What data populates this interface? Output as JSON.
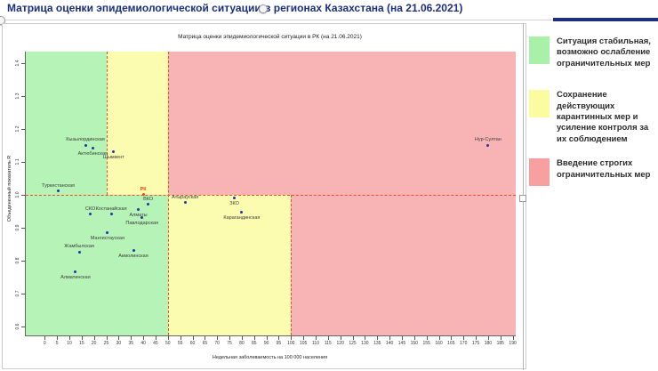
{
  "slide": {
    "title": "Матрица оценки эпидемиологической ситуации в регионах Казахстана (на 21.06.2021)"
  },
  "chart_data": {
    "type": "scatter",
    "title": "Матрица оценки эпидемиологической ситуации в РК (на 21.06.2021)",
    "xlabel": "Недельная заболеваемость на 100 000 населения",
    "ylabel": "Объединенный показатель R",
    "xlim": [
      0,
      190
    ],
    "ylim": [
      0.6,
      1.4
    ],
    "x_tick_step": 5,
    "y_tick_step": 0.1,
    "grid": false,
    "thresholds": {
      "R_line": 1.0,
      "incidence_when_R_above_1": [
        25,
        50
      ],
      "incidence_when_R_below_1": [
        50,
        100
      ]
    },
    "zones": [
      {
        "band": "upper",
        "x_from": null,
        "x_to": 25,
        "color": "green"
      },
      {
        "band": "upper",
        "x_from": 25,
        "x_to": 50,
        "color": "yellow"
      },
      {
        "band": "upper",
        "x_from": 50,
        "x_to": null,
        "color": "pink"
      },
      {
        "band": "lower",
        "x_from": null,
        "x_to": 50,
        "color": "green"
      },
      {
        "band": "lower",
        "x_from": 50,
        "x_to": 100,
        "color": "yellow"
      },
      {
        "band": "lower",
        "x_from": 100,
        "x_to": null,
        "color": "pink"
      }
    ],
    "dashed_lines": [
      {
        "orient": "h",
        "y": 1.0,
        "x_left": null,
        "x_right": null
      },
      {
        "orient": "v",
        "x": 25,
        "y_top": null,
        "y_bottom": 1.0
      },
      {
        "orient": "v",
        "x": 50,
        "y_top": null,
        "y_bottom": null
      },
      {
        "orient": "v",
        "x": 100,
        "y_top": 1.0,
        "y_bottom": null
      }
    ],
    "points": [
      {
        "name": "Кызылординская",
        "x": 16.5,
        "y": 1.15,
        "label_pos": "above",
        "highlight": false
      },
      {
        "name": "Актюбинская",
        "x": 19.5,
        "y": 1.14,
        "label_pos": "below",
        "highlight": false
      },
      {
        "name": "Шымкент",
        "x": 28,
        "y": 1.13,
        "label_pos": "below",
        "highlight": false
      },
      {
        "name": "Нур-Султан",
        "x": 180,
        "y": 1.15,
        "label_pos": "above",
        "highlight": false
      },
      {
        "name": "Туркестанская",
        "x": 5.5,
        "y": 1.01,
        "label_pos": "above",
        "highlight": false
      },
      {
        "name": "РК",
        "x": 40,
        "y": 1.0,
        "label_pos": "above",
        "highlight": true
      },
      {
        "name": "ВКО",
        "x": 42,
        "y": 0.97,
        "label_pos": "above",
        "highlight": false
      },
      {
        "name": "Алматы",
        "x": 38,
        "y": 0.955,
        "label_pos": "below",
        "highlight": false
      },
      {
        "name": "Павлодарская",
        "x": 39.5,
        "y": 0.93,
        "label_pos": "below",
        "highlight": false
      },
      {
        "name": "СКО",
        "x": 18.5,
        "y": 0.94,
        "label_pos": "above",
        "highlight": false
      },
      {
        "name": "Костанайская",
        "x": 27,
        "y": 0.94,
        "label_pos": "above",
        "highlight": false
      },
      {
        "name": "Мангистауская",
        "x": 25.5,
        "y": 0.885,
        "label_pos": "below",
        "highlight": false
      },
      {
        "name": "Жамбылская",
        "x": 14,
        "y": 0.825,
        "label_pos": "above",
        "highlight": false
      },
      {
        "name": "Акмолинская",
        "x": 36,
        "y": 0.83,
        "label_pos": "below",
        "highlight": false
      },
      {
        "name": "Алматинская",
        "x": 12.5,
        "y": 0.765,
        "label_pos": "below",
        "highlight": false
      },
      {
        "name": "Атырауская",
        "x": 57,
        "y": 0.975,
        "label_pos": "above",
        "highlight": false
      },
      {
        "name": "ЗКО",
        "x": 77,
        "y": 0.99,
        "label_pos": "below",
        "highlight": false
      },
      {
        "name": "Карагандинская",
        "x": 80,
        "y": 0.945,
        "label_pos": "below",
        "highlight": false
      }
    ]
  },
  "legend": {
    "items": [
      {
        "color": "#a9f1a9",
        "text": "Ситуация стабильная, возможно ослабление ограничительных мер"
      },
      {
        "color": "#fbfba2",
        "text": "Сохранение действующих карантинных мер и усиление контроля за их соблюдением"
      },
      {
        "color": "#f8a0a0",
        "text": "Введение строгих ограничительных мер"
      }
    ]
  },
  "colors": {
    "zone_green": "#b6f3b6",
    "zone_yellow": "#fcfcb0",
    "zone_pink": "#f8b4b4",
    "dashed_line": "#ee4d25",
    "point": "#2233aa",
    "point_highlight": "#e8490f",
    "slide_title": "#1b2f7e",
    "accent_bar": "#1b2f7e"
  }
}
